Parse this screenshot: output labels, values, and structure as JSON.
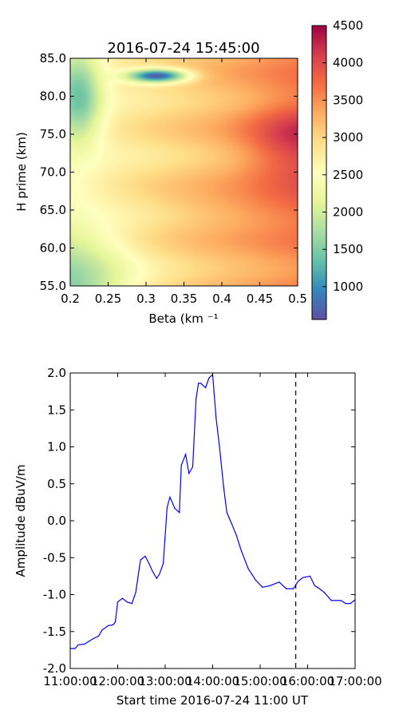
{
  "chart_data": [
    {
      "type": "heatmap",
      "title": "2016-07-24 15:45:00",
      "xlabel": "Beta (km ⁻¹",
      "ylabel": "H prime (km)",
      "xlim": [
        0.2,
        0.5
      ],
      "ylim": [
        55.0,
        85.0
      ],
      "x_ticks": [
        "0.2",
        "0.25",
        "0.3",
        "0.35",
        "0.4",
        "0.45",
        "0.5"
      ],
      "y_ticks": [
        "55.0",
        "60.0",
        "65.0",
        "70.0",
        "75.0",
        "80.0",
        "85.0"
      ],
      "colormap": "Spectral_r",
      "colorbar": {
        "range": [
          560,
          4500
        ],
        "ticks": [
          "1000",
          "1500",
          "2000",
          "2500",
          "3000",
          "3500",
          "4000",
          "4500"
        ]
      },
      "features": {
        "minimum": {
          "beta": 0.315,
          "hprime": 82.8,
          "value": 560
        },
        "maximum": {
          "beta": 0.5,
          "hprime": 74.0,
          "value": 4500
        }
      }
    },
    {
      "type": "line",
      "xlabel": "Start time 2016-07-24 11:00 UT",
      "ylabel": "Amplitude dBuV/m",
      "xlim": [
        0,
        6
      ],
      "ylim": [
        -2.0,
        2.0
      ],
      "grid": false,
      "x_ticks": [
        "11:00:00",
        "12:00:00",
        "13:00:00",
        "14:00:00",
        "15:00:00",
        "16:00:00",
        "17:00:00"
      ],
      "y_ticks": [
        "-2.0",
        "-1.5",
        "-1.0",
        "-0.5",
        "0.0",
        "0.5",
        "1.0",
        "1.5",
        "2.0"
      ],
      "x_units": "hours after 11:00 UT",
      "marker_line": {
        "x": 4.75,
        "style": "dashed",
        "color": "#000000"
      },
      "series": [
        {
          "color": "#0000ff",
          "x": [
            0,
            0.1,
            0.17,
            0.3,
            0.4,
            0.5,
            0.6,
            0.67,
            0.8,
            0.9,
            0.95,
            1.0,
            1.1,
            1.2,
            1.3,
            1.38,
            1.48,
            1.58,
            1.66,
            1.73,
            1.82,
            1.88,
            1.96,
            2.04,
            2.1,
            2.2,
            2.3,
            2.34,
            2.43,
            2.5,
            2.58,
            2.65,
            2.7,
            2.75,
            2.85,
            2.92,
            3.0,
            3.07,
            3.15,
            3.23,
            3.3,
            3.4,
            3.5,
            3.6,
            3.75,
            3.9,
            4.05,
            4.2,
            4.4,
            4.55,
            4.7,
            4.8,
            4.9,
            5.05,
            5.15,
            5.25,
            5.35,
            5.5,
            5.6,
            5.7,
            5.8,
            5.9,
            6.0
          ],
          "y": [
            -1.73,
            -1.73,
            -1.68,
            -1.67,
            -1.63,
            -1.59,
            -1.56,
            -1.48,
            -1.42,
            -1.41,
            -1.37,
            -1.1,
            -1.05,
            -1.1,
            -1.12,
            -0.97,
            -0.53,
            -0.48,
            -0.58,
            -0.68,
            -0.78,
            -0.72,
            -0.58,
            0.18,
            0.32,
            0.17,
            0.11,
            0.75,
            0.9,
            0.64,
            0.73,
            1.65,
            1.86,
            1.86,
            1.8,
            1.93,
            1.98,
            1.4,
            0.97,
            0.46,
            0.11,
            -0.04,
            -0.2,
            -0.4,
            -0.65,
            -0.8,
            -0.9,
            -0.88,
            -0.83,
            -0.92,
            -0.92,
            -0.82,
            -0.77,
            -0.75,
            -0.88,
            -0.92,
            -0.97,
            -1.08,
            -1.08,
            -1.08,
            -1.12,
            -1.12,
            -1.07
          ]
        }
      ]
    }
  ]
}
